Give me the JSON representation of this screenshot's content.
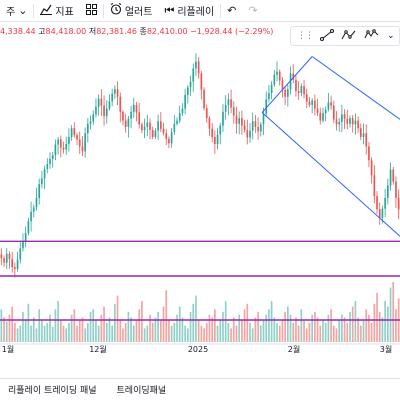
{
  "toolbar": {
    "interval_label": "주",
    "indicators_label": "지표",
    "alert_label": "얼러트",
    "replay_label": "리플레이"
  },
  "legend": {
    "open_partial": "4,338.44",
    "high_label": "고",
    "high_value": "84,418.00",
    "low_label": "저",
    "low_value": "82,381.46",
    "close_label": "종",
    "close_value": "82,410.00",
    "change": "−1,928.44 (−2.29%)"
  },
  "bottom_tabs": {
    "replay_panel": "리플레이 트레이딩 패널",
    "trading_panel": "트레이딩패널"
  },
  "colors": {
    "up": "#26a69a",
    "down": "#ef5350",
    "vol_up": "#8fd1c8",
    "vol_down": "#f5a3a0",
    "channel": "#2962ff",
    "hline": "#9c27b0",
    "text_down": "#f23645"
  },
  "icons": [
    "chevron-down-icon",
    "indicators-icon",
    "templates-icon",
    "alert-icon",
    "replay-icon",
    "undo-icon",
    "redo-icon",
    "trendline-icon",
    "pattern-icon",
    "more-icon",
    "filter-icon"
  ],
  "chart_data": {
    "type": "candlestick",
    "x_labels": [
      "1월",
      "12월",
      "2025",
      "2월",
      "3월"
    ],
    "price_range": [
      74000,
      109000
    ],
    "horizontal_lines": [
      79200
    ],
    "price_series": [
      76500,
      75800,
      77200,
      76400,
      75100,
      74800,
      76300,
      78100,
      79200,
      80500,
      82400,
      83900,
      84600,
      86100,
      88300,
      89200,
      90700,
      91500,
      92300,
      92900,
      94600,
      95400,
      94100,
      93800,
      94700,
      95800,
      97200,
      96100,
      95400,
      94300,
      93500,
      96400,
      97900,
      98300,
      99400,
      100600,
      101900,
      100800,
      99100,
      100300,
      101500,
      102700,
      103400,
      102200,
      99800,
      98400,
      97400,
      98700,
      99800,
      100900,
      99700,
      97800,
      96900,
      97400,
      98100,
      96900,
      95800,
      96800,
      98300,
      97100,
      96400,
      95500,
      94800,
      96600,
      97900,
      98400,
      99600,
      100300,
      102500,
      103700,
      104600,
      106700,
      107800,
      105900,
      103300,
      100400,
      98800,
      97100,
      95800,
      94700,
      96200,
      97600,
      99800,
      100900,
      101800,
      100500,
      99200,
      97900,
      98800,
      97600,
      96900,
      95700,
      96800,
      98300,
      97400,
      96700,
      97800,
      99500,
      101800,
      102800,
      104100,
      105700,
      106200,
      104800,
      103300,
      102200,
      103400,
      105900,
      104900,
      103100,
      102800,
      103900,
      102600,
      101400,
      100900,
      101600,
      100300,
      99600,
      98400,
      99600,
      100200,
      101300,
      100800,
      98600,
      97800,
      98200,
      99400,
      98700,
      97900,
      98800,
      97800,
      98400,
      97200,
      95800,
      96400,
      94300,
      92100,
      89700,
      86400,
      84300,
      82900,
      84400,
      86100,
      88100,
      90600,
      88700,
      86100,
      84300
    ],
    "volume_series": [
      24,
      18,
      15,
      20,
      26,
      14,
      10,
      12,
      22,
      16,
      28,
      12,
      18,
      10,
      24,
      16,
      12,
      14,
      20,
      11,
      24,
      30,
      16,
      12,
      10,
      14,
      20,
      24,
      12,
      16,
      18,
      10,
      14,
      22,
      24,
      16,
      12,
      20,
      26,
      14,
      18,
      12,
      28,
      34,
      16,
      10,
      14,
      22,
      18,
      12,
      16,
      24,
      30,
      10,
      12,
      20,
      14,
      18,
      22,
      16,
      26,
      38,
      16,
      12,
      14,
      20,
      26,
      18,
      12,
      10,
      22,
      28,
      34,
      16,
      12,
      10,
      14,
      20,
      18,
      24,
      12,
      16,
      22,
      30,
      14,
      10,
      18,
      12,
      20,
      16,
      24,
      28,
      14,
      10,
      18,
      22,
      12,
      16,
      20,
      24,
      30,
      18,
      14,
      12,
      16,
      22,
      26,
      20,
      14,
      18,
      12,
      24,
      16,
      10,
      14,
      20,
      22,
      18,
      12,
      16,
      14,
      20,
      24,
      12,
      10,
      16,
      20,
      18,
      14,
      22,
      26,
      30,
      18,
      12,
      16,
      24,
      20,
      14,
      28,
      36,
      22,
      18,
      30,
      26,
      40,
      44,
      24,
      32
    ]
  }
}
